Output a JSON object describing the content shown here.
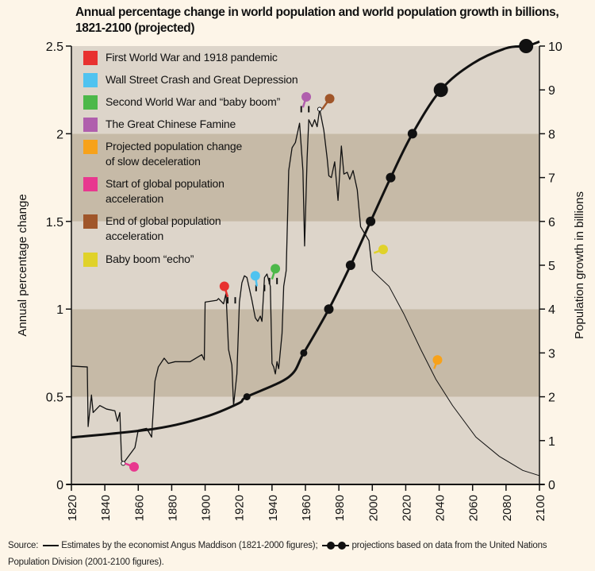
{
  "chart_data": {
    "type": "line",
    "title": "Annual percentage change in world population and world population growth in billions, 1821-2100 (projected)",
    "xlabel": "",
    "ylabel": "Annual percentage change",
    "ylabel_right": "Population growth in billions",
    "xlim": [
      1820,
      2100
    ],
    "ylim": [
      0,
      2.5
    ],
    "ylim_right": [
      0,
      10
    ],
    "x_ticks": [
      "1820",
      "1840",
      "1860",
      "1880",
      "1900",
      "1920",
      "1940",
      "1960",
      "1980",
      "2000",
      "2020",
      "2040",
      "2060",
      "2080",
      "2100"
    ],
    "y_ticks": [
      "0",
      "0.5",
      "1",
      "1.5",
      "2",
      "2.5"
    ],
    "y_ticks_right": [
      "0",
      "1",
      "2",
      "3",
      "4",
      "5",
      "6",
      "7",
      "8",
      "9",
      "10"
    ],
    "grid": "alternating horizontal bands every 0.5",
    "band_colors": {
      "light": "#ddd5ca",
      "dark": "#c6baa7"
    },
    "annual_change": {
      "x": [
        1820,
        1829.5,
        1830,
        1832,
        1833,
        1837,
        1841,
        1846,
        1847.5,
        1849,
        1850,
        1851,
        1858,
        1860,
        1865,
        1868,
        1870,
        1872,
        1875.5,
        1878,
        1882,
        1891,
        1898,
        1899.5,
        1900,
        1907,
        1908,
        1911,
        1912.5,
        1914,
        1916,
        1917,
        1919,
        1920.5,
        1922,
        1923.5,
        1925,
        1928,
        1930,
        1931.5,
        1933,
        1934,
        1935.5,
        1937,
        1939,
        1940,
        1941,
        1942,
        1943,
        1944,
        1946,
        1947,
        1948.5,
        1950,
        1952,
        1954,
        1956.5,
        1958.5,
        1959.5,
        1961,
        1962,
        1964,
        1965.5,
        1967,
        1968.5,
        1971,
        1973,
        1974,
        1975.5,
        1977.5,
        1979.5,
        1981.5,
        1983,
        1985,
        1986.5,
        1988.5,
        1991,
        1993,
        1995.5,
        1998,
        2000
      ],
      "y": [
        0.675,
        0.67,
        0.33,
        0.51,
        0.41,
        0.45,
        0.43,
        0.42,
        0.36,
        0.41,
        0.14,
        0.12,
        0.21,
        0.31,
        0.32,
        0.27,
        0.59,
        0.67,
        0.72,
        0.69,
        0.7,
        0.7,
        0.74,
        0.71,
        1.04,
        1.05,
        1.06,
        1.03,
        1.09,
        0.77,
        0.68,
        0.45,
        0.63,
        1.04,
        1.15,
        1.19,
        1.18,
        1.05,
        0.95,
        0.93,
        0.96,
        0.93,
        1.18,
        1.2,
        1.13,
        0.69,
        0.67,
        0.63,
        0.7,
        0.66,
        0.86,
        1.13,
        1.22,
        1.79,
        1.92,
        1.95,
        2.06,
        1.79,
        1.36,
        1.86,
        2.08,
        2.04,
        2.08,
        2.04,
        2.14,
        2.02,
        1.86,
        1.76,
        1.75,
        1.84,
        1.62,
        1.93,
        1.77,
        1.78,
        1.74,
        1.79,
        1.68,
        1.47,
        1.43,
        1.39,
        1.22
      ]
    },
    "projected_change": {
      "x": [
        2000,
        2010,
        2019,
        2029,
        2038,
        2048,
        2062,
        2076,
        2090,
        2100
      ],
      "y": [
        1.22,
        1.13,
        0.97,
        0.77,
        0.6,
        0.45,
        0.27,
        0.16,
        0.08,
        0.05
      ]
    },
    "population_billions": {
      "x": [
        1820,
        1870,
        1900,
        1920,
        1925,
        1950,
        1959,
        1974,
        1987,
        1999,
        2011,
        2024,
        2041,
        2060,
        2080,
        2092,
        2100
      ],
      "y": [
        1.07,
        1.27,
        1.54,
        1.85,
        2.0,
        2.45,
        3.0,
        4.0,
        5.0,
        6.0,
        7.0,
        8.0,
        9.0,
        9.6,
        9.95,
        10.0,
        10.1
      ],
      "milestones": [
        {
          "year": 1925,
          "billions": 2
        },
        {
          "year": 1959,
          "billions": 3
        },
        {
          "year": 1974,
          "billions": 4
        },
        {
          "year": 1987,
          "billions": 5
        },
        {
          "year": 1999,
          "billions": 6
        },
        {
          "year": 2011,
          "billions": 7
        },
        {
          "year": 2024,
          "billions": 8
        },
        {
          "year": 2041,
          "billions": 9
        },
        {
          "year": 2092,
          "billions": 10
        }
      ]
    },
    "legend": [
      {
        "label": "First World War and 1918 pandemic",
        "color": "#e8312f"
      },
      {
        "label": "Wall Street Crash and Great Depression",
        "color": "#4fc3f0"
      },
      {
        "label": "Second World War and “baby boom”",
        "color": "#4cb849"
      },
      {
        "label": "The Great Chinese Famine",
        "color": "#b05fad"
      },
      {
        "label": "Projected population change of slow deceleration",
        "lines": [
          "Projected population change",
          "of slow deceleration"
        ],
        "color": "#f7a21b"
      },
      {
        "label": "Start of global population acceleration",
        "lines": [
          "Start of global population",
          "acceleration"
        ],
        "color": "#e8388f"
      },
      {
        "label": "End of global population acceleration",
        "lines": [
          "End of global population",
          "acceleration"
        ],
        "color": "#a0562a"
      },
      {
        "label": "Baby boom “echo”",
        "color": "#e0d22a"
      }
    ],
    "markers": [
      {
        "event": "First World War and 1918 pandemic",
        "color": "#e8312f",
        "head": [
          1911.5,
          1.13
        ],
        "tip": [
          1913.5,
          1.07
        ]
      },
      {
        "event": "Wall Street Crash and Great Depression",
        "color": "#4fc3f0",
        "head": [
          1930,
          1.19
        ],
        "tip": [
          1931,
          1.13
        ]
      },
      {
        "event": "Second World War and baby boom",
        "color": "#4cb849",
        "head": [
          1942,
          1.23
        ],
        "tip": [
          1940,
          1.17
        ]
      },
      {
        "event": "The Great Chinese Famine",
        "color": "#b05fad",
        "head": [
          1960.5,
          2.21
        ],
        "tip": [
          1958.5,
          2.15
        ]
      },
      {
        "event": "End of global population acceleration",
        "color": "#a0562a",
        "head": [
          1974.5,
          2.2
        ],
        "tip": [
          1970,
          2.14
        ]
      },
      {
        "event": "Baby boom echo",
        "color": "#e0d22a",
        "head": [
          2006.5,
          1.34
        ],
        "tip": [
          2001,
          1.32
        ]
      },
      {
        "event": "Projected population change of slow deceleration",
        "color": "#f7a21b",
        "head": [
          2039,
          0.71
        ],
        "tip": [
          2037,
          0.66
        ]
      },
      {
        "event": "Start of global population acceleration",
        "color": "#e8388f",
        "head": [
          1857.5,
          0.1
        ],
        "tip": [
          1852,
          0.12
        ]
      }
    ],
    "event_ticks": [
      [
        1913.5,
        1.05
      ],
      [
        1918,
        1.05
      ],
      [
        1930.5,
        1.12
      ],
      [
        1935.5,
        1.12
      ],
      [
        1938.5,
        1.16
      ],
      [
        1943,
        1.16
      ],
      [
        1957.5,
        2.14
      ],
      [
        1962,
        2.14
      ]
    ],
    "open_points": [
      [
        1851,
        0.12
      ],
      [
        1968.5,
        2.14
      ]
    ]
  },
  "source": {
    "prefix": "Source:",
    "part1": "Estimates by the economist Angus Maddison (1821-2000 figures);",
    "part2": "projections based on data from the United Nations",
    "part3": "Population Division (2001-2100 figures)."
  }
}
